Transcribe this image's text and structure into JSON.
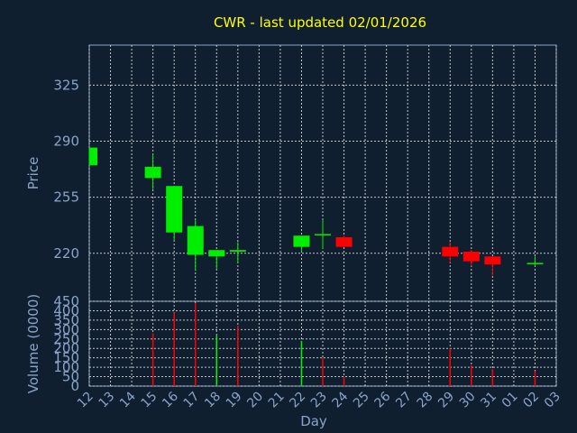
{
  "colors": {
    "background": "#0f1f30",
    "axis": "#8aa4c8",
    "title": "#ffff00",
    "up": "#00ee00",
    "down": "#ff0000",
    "grid": "#d8d8d8"
  },
  "chart_data": [
    {
      "type": "candlestick",
      "title": "CWR - last updated 02/01/2026",
      "ylabel": "Price",
      "ylim": [
        190,
        350
      ],
      "yticks": [
        220,
        255,
        290,
        325
      ],
      "grid": true,
      "candles": [
        {
          "x": "12",
          "open": 275,
          "close": 286,
          "high": 286,
          "low": 275
        },
        {
          "x": "15",
          "open": 267,
          "close": 274,
          "high": 282,
          "low": 260
        },
        {
          "x": "16",
          "open": 233,
          "close": 262,
          "high": 262,
          "low": 228
        },
        {
          "x": "17",
          "open": 219,
          "close": 237,
          "high": 241,
          "low": 209
        },
        {
          "x": "18",
          "open": 218,
          "close": 222,
          "high": 222,
          "low": 210
        },
        {
          "x": "19",
          "open": 221,
          "close": 222,
          "high": 227,
          "low": 214
        },
        {
          "x": "22",
          "open": 224,
          "close": 231,
          "high": 231,
          "low": 221
        },
        {
          "x": "23",
          "open": 232,
          "close": 232,
          "high": 241,
          "low": 223
        },
        {
          "x": "24",
          "open": 230,
          "close": 224,
          "high": 231,
          "low": 224
        },
        {
          "x": "29",
          "open": 224,
          "close": 218,
          "high": 227,
          "low": 214
        },
        {
          "x": "30",
          "open": 221,
          "close": 215,
          "high": 222,
          "low": 212
        },
        {
          "x": "31",
          "open": 218,
          "close": 213,
          "high": 218,
          "low": 206
        },
        {
          "x": "02",
          "open": 214,
          "close": 214,
          "high": 218,
          "low": 212
        }
      ]
    },
    {
      "type": "bar",
      "xlabel": "Day",
      "ylabel": "Volume (0000)",
      "ylim": [
        0,
        450
      ],
      "yticks": [
        0,
        50,
        100,
        150,
        200,
        250,
        300,
        350,
        400,
        450
      ],
      "categories": [
        "12",
        "13",
        "14",
        "15",
        "16",
        "17",
        "18",
        "19",
        "20",
        "21",
        "22",
        "23",
        "24",
        "25",
        "26",
        "27",
        "28",
        "29",
        "30",
        "31",
        "01",
        "02",
        "03"
      ],
      "bars": [
        {
          "x": "15",
          "value": 280,
          "color": "down"
        },
        {
          "x": "16",
          "value": 390,
          "color": "down"
        },
        {
          "x": "17",
          "value": 440,
          "color": "down"
        },
        {
          "x": "18",
          "value": 270,
          "color": "up"
        },
        {
          "x": "19",
          "value": 320,
          "color": "down"
        },
        {
          "x": "22",
          "value": 240,
          "color": "up"
        },
        {
          "x": "23",
          "value": 150,
          "color": "down"
        },
        {
          "x": "24",
          "value": 50,
          "color": "down"
        },
        {
          "x": "29",
          "value": 200,
          "color": "down"
        },
        {
          "x": "30",
          "value": 110,
          "color": "down"
        },
        {
          "x": "31",
          "value": 90,
          "color": "down"
        },
        {
          "x": "02",
          "value": 80,
          "color": "down"
        }
      ]
    }
  ]
}
